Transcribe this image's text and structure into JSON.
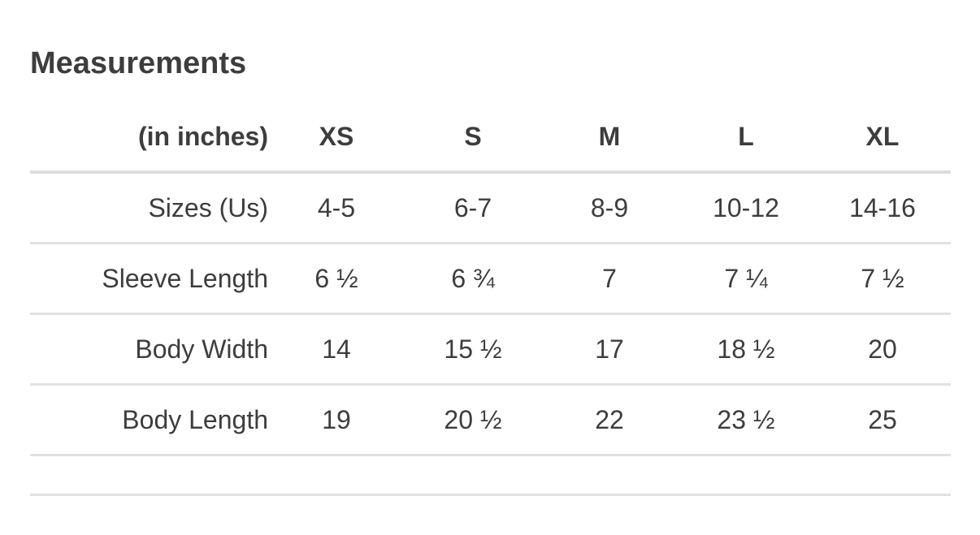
{
  "title": "Measurements",
  "chart_data": {
    "type": "table",
    "title": "Measurements",
    "unit_label": "(in inches)",
    "columns": [
      "XS",
      "S",
      "M",
      "L",
      "XL"
    ],
    "rows": [
      {
        "label": "Sizes (Us)",
        "values": [
          "4-5",
          "6-7",
          "8-9",
          "10-12",
          "14-16"
        ]
      },
      {
        "label": "Sleeve Length",
        "values": [
          "6 ½",
          "6 ¾",
          "7",
          "7 ¼",
          "7 ½"
        ]
      },
      {
        "label": "Body Width",
        "values": [
          "14",
          "15 ½",
          "17",
          "18 ½",
          "20"
        ]
      },
      {
        "label": "Body Length",
        "values": [
          "19",
          "20 ½",
          "22",
          "23 ½",
          "25"
        ]
      }
    ]
  },
  "colors": {
    "text": "#3d3d3d",
    "divider": "#e1e1e4",
    "header_divider": "#dddde0",
    "background": "#ffffff"
  }
}
